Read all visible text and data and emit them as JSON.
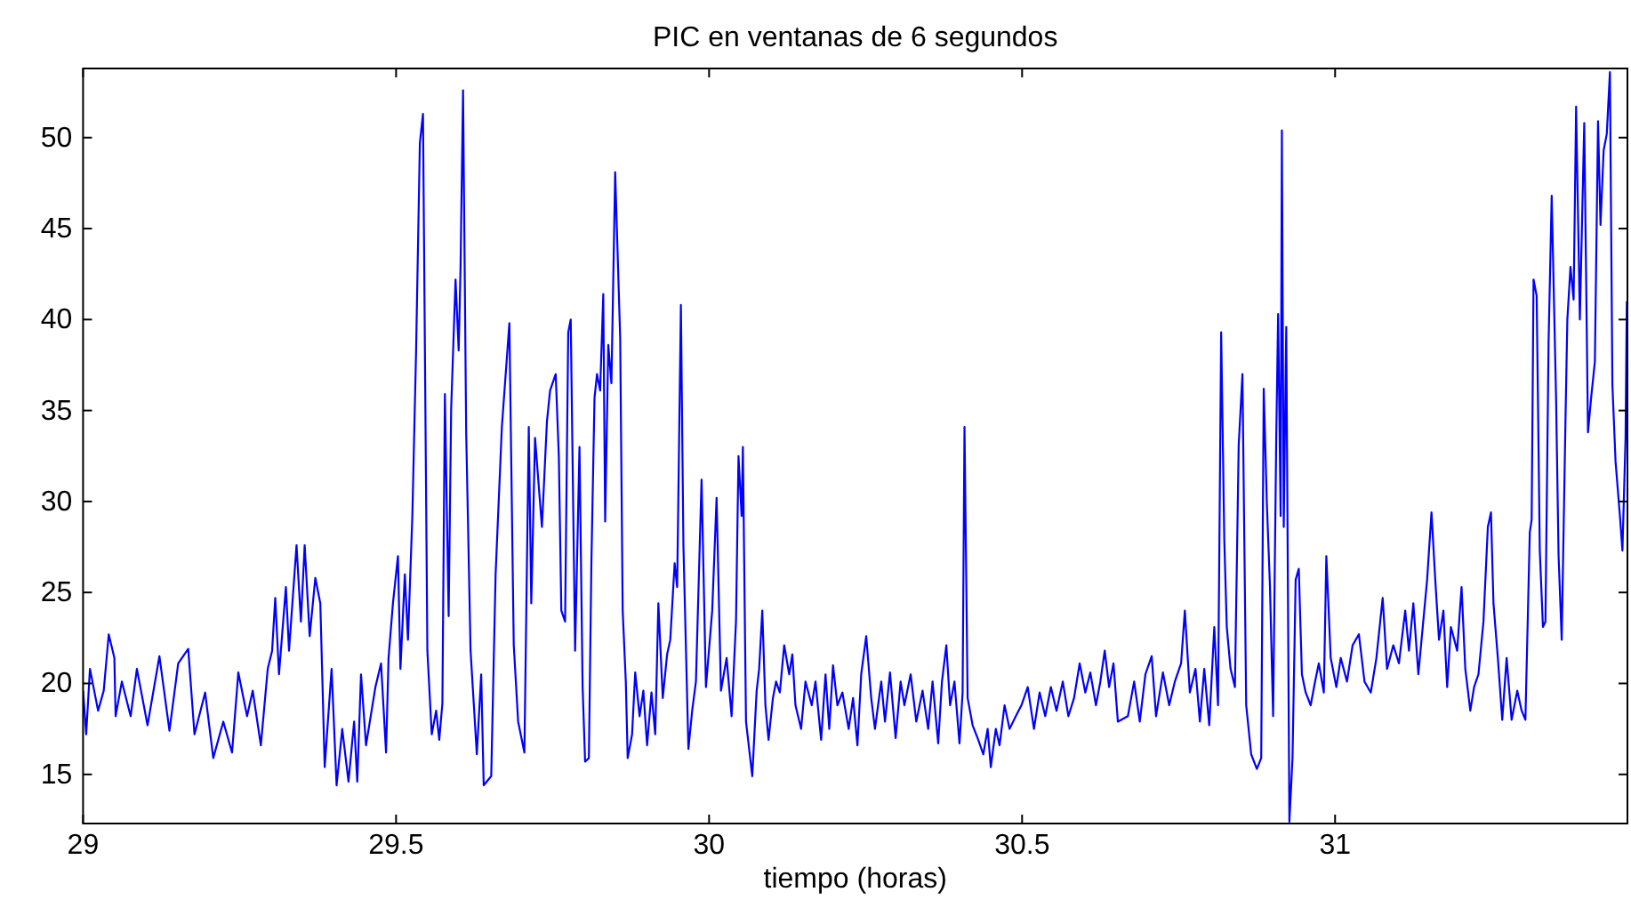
{
  "chart_data": {
    "type": "line",
    "title": "PIC en ventanas de 6 segundos",
    "xlabel": "tiempo (horas)",
    "xlim": [
      29,
      31.467
    ],
    "xticks": [
      29,
      29.5,
      30,
      30.5,
      31
    ],
    "ylim": [
      12.3,
      53.8
    ],
    "yticks": [
      15,
      20,
      25,
      30,
      35,
      40,
      45,
      50
    ],
    "grid": false,
    "marker": "none",
    "line_style": "solid",
    "series": [
      {
        "color": "#0000ff",
        "x": [
          29.0,
          29.005,
          29.011,
          29.024,
          29.033,
          29.041,
          29.05,
          29.052,
          29.062,
          29.076,
          29.086,
          29.103,
          29.122,
          29.138,
          29.152,
          29.168,
          29.178,
          29.195,
          29.208,
          29.224,
          29.238,
          29.248,
          29.262,
          29.271,
          29.284,
          29.295,
          29.302,
          29.307,
          29.313,
          29.324,
          29.329,
          29.341,
          29.348,
          29.354,
          29.362,
          29.371,
          29.379,
          29.386,
          29.397,
          29.405,
          29.414,
          29.424,
          29.433,
          29.438,
          29.444,
          29.452,
          29.467,
          29.476,
          29.484,
          29.488,
          29.495,
          29.503,
          29.507,
          29.514,
          29.519,
          29.526,
          29.532,
          29.538,
          29.543,
          29.55,
          29.557,
          29.564,
          29.569,
          29.574,
          29.578,
          29.584,
          29.588,
          29.595,
          29.6,
          29.603,
          29.607,
          29.612,
          29.619,
          29.629,
          29.636,
          29.64,
          29.652,
          29.659,
          29.669,
          29.681,
          29.688,
          29.695,
          29.705,
          29.712,
          29.716,
          29.722,
          29.733,
          29.741,
          29.746,
          29.755,
          29.76,
          29.764,
          29.77,
          29.775,
          29.779,
          29.786,
          29.793,
          29.798,
          29.802,
          29.808,
          29.812,
          29.817,
          29.821,
          29.826,
          29.831,
          29.834,
          29.839,
          29.844,
          29.85,
          29.858,
          29.862,
          29.867,
          29.87,
          29.877,
          29.882,
          29.889,
          29.895,
          29.901,
          29.908,
          29.914,
          29.919,
          29.926,
          29.933,
          29.938,
          29.945,
          29.949,
          29.955,
          29.959,
          29.967,
          29.973,
          29.979,
          29.988,
          29.995,
          30.005,
          30.012,
          30.019,
          30.028,
          30.036,
          30.043,
          30.047,
          30.052,
          30.054,
          30.059,
          30.069,
          30.076,
          30.08,
          30.085,
          30.09,
          30.095,
          30.102,
          30.107,
          30.113,
          30.12,
          30.128,
          30.133,
          30.138,
          30.147,
          30.154,
          30.164,
          30.17,
          30.179,
          30.186,
          30.192,
          30.198,
          30.205,
          30.213,
          30.223,
          30.23,
          30.237,
          30.243,
          30.251,
          30.259,
          30.265,
          30.275,
          30.281,
          30.289,
          30.298,
          30.306,
          30.312,
          30.322,
          30.331,
          30.341,
          30.35,
          30.357,
          30.366,
          30.372,
          30.379,
          30.385,
          30.392,
          30.4,
          30.405,
          30.408,
          30.413,
          30.421,
          30.43,
          30.438,
          30.445,
          30.45,
          30.458,
          30.464,
          30.472,
          30.48,
          30.49,
          30.499,
          30.509,
          30.519,
          30.528,
          30.537,
          30.546,
          30.555,
          30.565,
          30.574,
          30.583,
          30.592,
          30.601,
          30.609,
          30.618,
          30.625,
          30.632,
          30.639,
          30.646,
          30.653,
          30.669,
          30.679,
          30.688,
          30.697,
          30.707,
          30.714,
          30.725,
          30.735,
          30.744,
          30.754,
          30.76,
          30.768,
          30.777,
          30.784,
          30.791,
          30.799,
          30.807,
          30.813,
          30.818,
          30.823,
          30.827,
          30.833,
          30.84,
          30.846,
          30.852,
          30.858,
          30.866,
          30.875,
          30.882,
          30.886,
          30.891,
          30.896,
          30.901,
          30.906,
          30.909,
          30.913,
          30.915,
          30.918,
          30.922,
          30.927,
          30.932,
          30.937,
          30.942,
          30.947,
          30.953,
          30.961,
          30.968,
          30.974,
          30.982,
          30.986,
          30.993,
          31.002,
          31.009,
          31.019,
          31.028,
          31.038,
          31.047,
          31.057,
          31.066,
          31.076,
          31.083,
          31.093,
          31.102,
          31.112,
          31.118,
          31.125,
          31.133,
          31.14,
          31.147,
          31.154,
          31.16,
          31.166,
          31.173,
          31.179,
          31.185,
          31.195,
          31.202,
          31.208,
          31.216,
          31.222,
          31.229,
          31.237,
          31.244,
          31.249,
          31.253,
          31.26,
          31.267,
          31.274,
          31.282,
          31.291,
          31.298,
          31.304,
          31.311,
          31.314,
          31.317,
          31.322,
          31.327,
          31.332,
          31.336,
          31.341,
          31.346,
          31.353,
          31.357,
          31.362,
          31.368,
          31.371,
          31.376,
          31.381,
          31.385,
          31.391,
          31.398,
          31.404,
          31.409,
          31.415,
          31.42,
          31.424,
          31.429,
          31.434,
          31.439,
          31.443,
          31.448,
          31.455,
          31.459,
          31.464,
          31.466
        ],
        "values": [
          19.6,
          17.2,
          20.8,
          18.5,
          19.6,
          22.7,
          21.4,
          18.2,
          20.1,
          18.2,
          20.8,
          17.7,
          21.5,
          17.4,
          21.1,
          21.9,
          17.2,
          19.5,
          15.9,
          17.9,
          16.2,
          20.6,
          18.2,
          19.6,
          16.6,
          20.8,
          21.8,
          24.7,
          20.5,
          25.3,
          21.8,
          27.6,
          23.4,
          27.6,
          22.6,
          25.8,
          24.4,
          15.4,
          20.8,
          14.4,
          17.5,
          14.6,
          17.9,
          14.6,
          20.5,
          16.6,
          19.8,
          21.1,
          16.2,
          21.4,
          24.4,
          27.0,
          20.8,
          26.0,
          22.4,
          29.2,
          38.3,
          49.7,
          51.3,
          21.8,
          17.2,
          18.5,
          16.9,
          18.9,
          35.9,
          23.7,
          35.1,
          42.2,
          38.3,
          42.9,
          52.6,
          33.8,
          21.8,
          16.1,
          20.5,
          14.4,
          14.9,
          26.0,
          34.1,
          39.8,
          22.1,
          17.9,
          16.2,
          34.1,
          24.4,
          33.5,
          28.6,
          34.4,
          36.1,
          37.0,
          32.5,
          24.0,
          23.4,
          39.3,
          40.0,
          21.8,
          33.0,
          19.8,
          15.7,
          15.9,
          26.6,
          35.7,
          37.0,
          36.1,
          41.4,
          28.9,
          38.6,
          36.5,
          48.1,
          39.0,
          24.0,
          20.1,
          15.9,
          17.2,
          20.6,
          18.2,
          19.6,
          16.6,
          19.5,
          17.2,
          24.4,
          19.2,
          21.6,
          22.4,
          26.6,
          25.3,
          40.8,
          27.6,
          16.4,
          18.5,
          20.1,
          31.2,
          19.8,
          24.0,
          30.2,
          19.6,
          21.4,
          18.2,
          23.4,
          32.5,
          29.2,
          33.0,
          17.9,
          14.9,
          19.6,
          20.8,
          24.0,
          18.8,
          16.9,
          19.2,
          20.1,
          19.5,
          22.1,
          20.5,
          21.6,
          18.8,
          17.5,
          20.1,
          18.8,
          20.1,
          16.9,
          20.5,
          17.5,
          21.0,
          18.8,
          19.5,
          17.5,
          19.2,
          16.6,
          20.5,
          22.6,
          19.2,
          17.5,
          20.1,
          17.9,
          20.6,
          17.0,
          20.1,
          18.8,
          20.5,
          17.9,
          19.6,
          17.5,
          20.1,
          16.7,
          20.1,
          22.1,
          18.8,
          20.1,
          16.7,
          19.5,
          34.1,
          19.2,
          17.7,
          16.9,
          16.1,
          17.5,
          15.4,
          17.5,
          16.6,
          18.8,
          17.5,
          18.2,
          18.8,
          19.8,
          17.5,
          19.5,
          18.2,
          19.8,
          18.5,
          20.1,
          18.2,
          19.2,
          21.1,
          19.5,
          20.6,
          18.8,
          20.1,
          21.8,
          19.8,
          21.1,
          17.9,
          18.2,
          20.1,
          17.9,
          20.5,
          21.5,
          18.2,
          20.6,
          18.8,
          20.1,
          21.1,
          24.0,
          19.5,
          20.8,
          17.9,
          20.8,
          17.7,
          23.1,
          18.8,
          39.3,
          27.9,
          23.1,
          20.8,
          19.8,
          33.1,
          37.0,
          18.8,
          16.1,
          15.3,
          15.9,
          36.2,
          29.9,
          25.3,
          18.2,
          33.5,
          40.3,
          29.2,
          50.4,
          28.6,
          39.6,
          12.4,
          15.9,
          25.7,
          26.3,
          20.5,
          19.5,
          18.8,
          20.1,
          21.1,
          19.5,
          27.0,
          21.4,
          19.8,
          21.4,
          20.1,
          22.1,
          22.7,
          20.1,
          19.5,
          21.4,
          24.7,
          20.8,
          22.1,
          21.1,
          24.0,
          21.8,
          24.4,
          20.5,
          23.1,
          25.7,
          29.4,
          25.7,
          22.4,
          24.0,
          19.8,
          23.1,
          21.8,
          25.3,
          20.8,
          18.5,
          19.8,
          20.5,
          23.4,
          28.6,
          29.4,
          24.4,
          21.4,
          18.0,
          21.4,
          18.0,
          19.6,
          18.5,
          18.0,
          28.3,
          29.0,
          42.2,
          41.3,
          27.3,
          23.1,
          23.4,
          38.7,
          46.8,
          35.7,
          27.0,
          22.4,
          34.4,
          40.0,
          42.9,
          41.1,
          51.7,
          40.0,
          50.8,
          33.8,
          35.7,
          37.7,
          50.9,
          45.2,
          49.3,
          50.2,
          53.6,
          36.4,
          32.2,
          29.2,
          27.3,
          33.5,
          41.0
        ]
      }
    ]
  }
}
